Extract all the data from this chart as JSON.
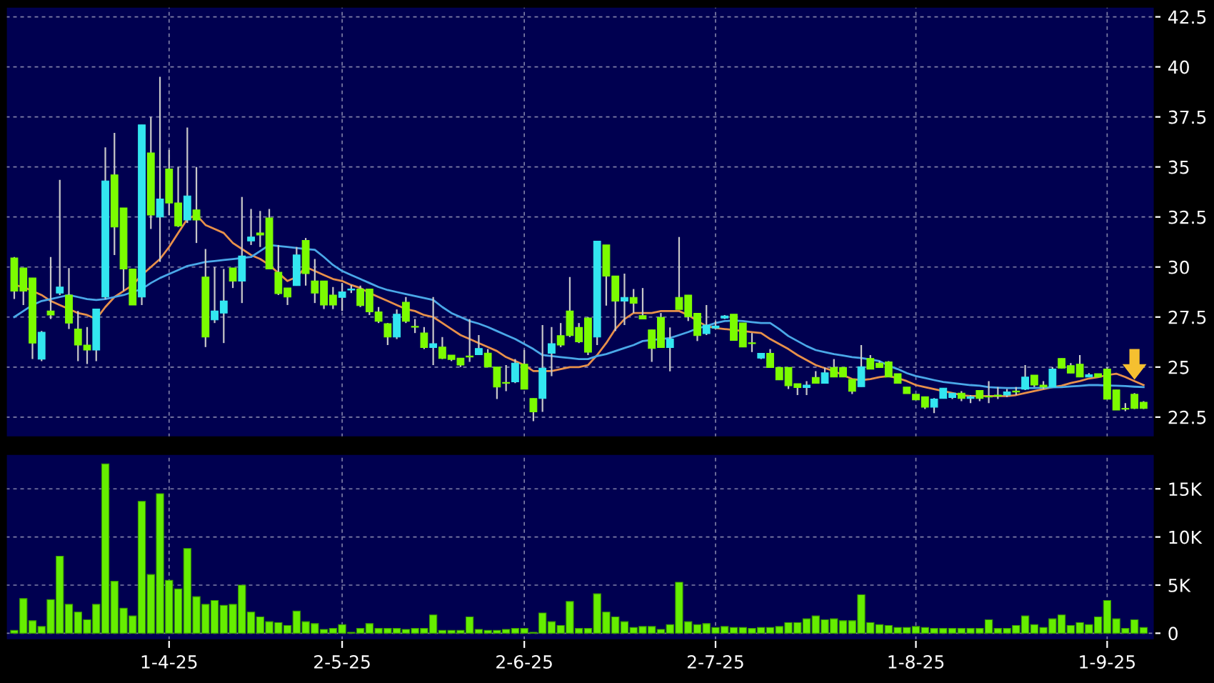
{
  "chart_data": [
    {
      "type": "candlestick",
      "categories": [
        null,
        null,
        null,
        null,
        null,
        null,
        null,
        null,
        null,
        null,
        null,
        null,
        null,
        null,
        null,
        null,
        null,
        null,
        null,
        null,
        null,
        null,
        null,
        null,
        null,
        null,
        null,
        null,
        null,
        null,
        null,
        null,
        null,
        null,
        null,
        null,
        null,
        null,
        null,
        null,
        null,
        null,
        null,
        null,
        null,
        null,
        null,
        null,
        null,
        null,
        null,
        null,
        null,
        null,
        null,
        null,
        null,
        null,
        null,
        null,
        null,
        null,
        null,
        null,
        null,
        null,
        null,
        null,
        null,
        null,
        null,
        null,
        null,
        null,
        null,
        null,
        null,
        null,
        null,
        null,
        null,
        null,
        null,
        null,
        null,
        null,
        null,
        null,
        null,
        null,
        null,
        null,
        null,
        null,
        null,
        null,
        null,
        null,
        null,
        null,
        null,
        null,
        null,
        null,
        null,
        null,
        null,
        null,
        null,
        null,
        null,
        null,
        null,
        null,
        null,
        null,
        null,
        null,
        null,
        null,
        null,
        null,
        null,
        null,
        null
      ],
      "ohlc": [
        [
          30.45,
          30.5,
          28.4,
          28.8
        ],
        [
          29.95,
          29.95,
          28.1,
          28.8
        ],
        [
          29.45,
          29.45,
          25.4,
          26.2
        ],
        [
          25.4,
          26.8,
          25.3,
          26.74
        ],
        [
          27.8,
          30.5,
          27.4,
          27.6
        ],
        [
          28.7,
          34.35,
          28.6,
          29.0
        ],
        [
          28.6,
          29.95,
          26.9,
          27.2
        ],
        [
          26.9,
          27.8,
          25.3,
          26.1
        ],
        [
          26.1,
          27.0,
          25.15,
          25.85
        ],
        [
          25.85,
          27.9,
          25.3,
          27.9
        ],
        [
          28.5,
          35.98,
          28.4,
          34.3
        ],
        [
          34.6,
          36.7,
          30.6,
          32.0
        ],
        [
          32.95,
          32.95,
          28.8,
          29.9
        ],
        [
          29.9,
          29.9,
          28.1,
          28.1
        ],
        [
          28.5,
          37.1,
          28.1,
          37.1
        ],
        [
          35.7,
          37.5,
          31.9,
          32.6
        ],
        [
          32.5,
          39.5,
          30.26,
          33.4
        ],
        [
          34.9,
          35.85,
          32.6,
          33.2
        ],
        [
          33.2,
          35.0,
          32.0,
          32.05
        ],
        [
          32.35,
          36.97,
          32.2,
          33.55
        ],
        [
          32.85,
          35.0,
          31.2,
          32.35
        ],
        [
          29.5,
          30.9,
          26.0,
          26.5
        ],
        [
          27.36,
          30.0,
          27.2,
          27.8
        ],
        [
          27.7,
          29.9,
          26.2,
          28.3
        ],
        [
          29.95,
          29.95,
          28.95,
          29.3
        ],
        [
          29.3,
          33.5,
          28.2,
          30.55
        ],
        [
          31.3,
          32.9,
          31.1,
          31.5
        ],
        [
          31.7,
          32.8,
          31.0,
          31.6
        ],
        [
          32.45,
          32.9,
          29.9,
          29.9
        ],
        [
          29.74,
          31.1,
          28.6,
          28.67
        ],
        [
          28.95,
          28.95,
          28.1,
          28.5
        ],
        [
          29.07,
          31.0,
          29.07,
          30.6
        ],
        [
          31.33,
          31.45,
          29.07,
          29.67
        ],
        [
          29.3,
          30.4,
          28.2,
          28.7
        ],
        [
          29.3,
          29.3,
          27.9,
          28.1
        ],
        [
          28.6,
          29.0,
          27.9,
          28.1
        ],
        [
          28.48,
          29.2,
          27.8,
          28.76
        ],
        [
          28.85,
          29.1,
          28.7,
          28.9
        ],
        [
          28.9,
          29.07,
          28.0,
          28.07
        ],
        [
          28.9,
          28.9,
          27.6,
          27.76
        ],
        [
          27.76,
          28.0,
          27.2,
          27.29
        ],
        [
          27.17,
          27.2,
          26.1,
          26.5
        ],
        [
          26.5,
          27.88,
          26.4,
          27.64
        ],
        [
          28.24,
          28.5,
          27.2,
          27.29
        ],
        [
          27.0,
          27.4,
          26.7,
          26.99
        ],
        [
          26.7,
          27.0,
          25.9,
          25.98
        ],
        [
          25.98,
          28.5,
          25.1,
          26.17
        ],
        [
          26.0,
          26.5,
          25.4,
          25.43
        ],
        [
          25.6,
          25.6,
          25.3,
          25.38
        ],
        [
          25.45,
          25.45,
          25.0,
          25.1
        ],
        [
          25.55,
          27.4,
          25.26,
          25.5
        ],
        [
          25.62,
          26.6,
          25.6,
          25.93
        ],
        [
          25.7,
          25.9,
          25.0,
          25.0
        ],
        [
          25.0,
          25.0,
          23.4,
          24.0
        ],
        [
          24.2,
          25.1,
          23.8,
          24.19
        ],
        [
          24.26,
          25.4,
          24.2,
          25.2
        ],
        [
          25.14,
          25.86,
          23.9,
          23.9
        ],
        [
          23.43,
          23.43,
          22.3,
          22.76
        ],
        [
          23.43,
          27.1,
          22.76,
          24.95
        ],
        [
          25.69,
          27.0,
          24.55,
          26.17
        ],
        [
          26.57,
          27.2,
          26.0,
          26.1
        ],
        [
          27.8,
          29.5,
          26.5,
          26.57
        ],
        [
          26.98,
          27.2,
          26.2,
          26.26
        ],
        [
          27.45,
          27.5,
          25.6,
          25.74
        ],
        [
          26.5,
          31.3,
          26.1,
          31.29
        ],
        [
          31.1,
          31.1,
          28.07,
          29.55
        ],
        [
          29.55,
          29.55,
          26.8,
          28.3
        ],
        [
          28.3,
          29.67,
          27.1,
          28.48
        ],
        [
          28.48,
          28.9,
          27.7,
          28.19
        ],
        [
          27.57,
          28.95,
          27.4,
          27.4
        ],
        [
          26.86,
          26.86,
          25.26,
          25.93
        ],
        [
          27.48,
          27.7,
          25.98,
          25.98
        ],
        [
          25.98,
          26.98,
          24.79,
          26.4
        ],
        [
          28.48,
          31.5,
          27.88,
          27.88
        ],
        [
          28.6,
          28.6,
          27.3,
          27.52
        ],
        [
          27.69,
          27.7,
          26.3,
          26.57
        ],
        [
          26.67,
          28.1,
          26.6,
          27.1
        ],
        [
          26.95,
          27.3,
          26.9,
          27.05
        ],
        [
          27.45,
          27.6,
          27.4,
          27.55
        ],
        [
          27.64,
          27.64,
          26.33,
          26.33
        ],
        [
          27.2,
          27.2,
          26.0,
          26.0
        ],
        [
          26.2,
          26.7,
          25.75,
          26.17
        ],
        [
          25.45,
          25.69,
          25.4,
          25.69
        ],
        [
          25.69,
          25.9,
          24.98,
          24.98
        ],
        [
          24.98,
          24.98,
          24.36,
          24.36
        ],
        [
          24.98,
          24.98,
          23.9,
          24.07
        ],
        [
          24.17,
          24.17,
          23.6,
          23.98
        ],
        [
          23.98,
          24.3,
          23.6,
          24.1
        ],
        [
          24.48,
          24.8,
          24.19,
          24.19
        ],
        [
          24.19,
          24.98,
          24.19,
          24.71
        ],
        [
          24.98,
          25.4,
          24.5,
          24.5
        ],
        [
          24.98,
          24.98,
          24.5,
          24.5
        ],
        [
          24.38,
          24.38,
          23.65,
          23.79
        ],
        [
          24.02,
          26.1,
          24.02,
          25.02
        ],
        [
          25.43,
          25.6,
          24.9,
          24.9
        ],
        [
          25.2,
          25.3,
          24.98,
          24.98
        ],
        [
          25.26,
          25.3,
          24.5,
          24.5
        ],
        [
          24.67,
          24.67,
          24.19,
          24.19
        ],
        [
          24.0,
          24.0,
          23.67,
          23.67
        ],
        [
          23.64,
          23.64,
          23.36,
          23.36
        ],
        [
          23.52,
          23.52,
          22.9,
          23.0
        ],
        [
          23.0,
          23.45,
          22.7,
          23.4
        ],
        [
          23.43,
          23.95,
          23.43,
          23.95
        ],
        [
          23.48,
          23.7,
          23.4,
          23.7
        ],
        [
          23.7,
          23.8,
          23.3,
          23.43
        ],
        [
          23.43,
          23.6,
          23.2,
          23.52
        ],
        [
          23.83,
          23.83,
          23.3,
          23.43
        ],
        [
          23.52,
          24.3,
          23.2,
          23.5
        ],
        [
          23.6,
          24.0,
          23.4,
          23.55
        ],
        [
          23.6,
          23.9,
          23.5,
          23.76
        ],
        [
          23.8,
          24.0,
          23.6,
          23.75
        ],
        [
          23.9,
          25.1,
          23.85,
          24.5
        ],
        [
          24.6,
          24.6,
          24.0,
          24.1
        ],
        [
          24.1,
          24.3,
          23.9,
          24.0
        ],
        [
          24.0,
          25.0,
          24.0,
          24.9
        ],
        [
          25.43,
          25.43,
          24.93,
          24.95
        ],
        [
          25.07,
          25.2,
          24.7,
          24.7
        ],
        [
          25.14,
          25.6,
          24.5,
          24.5
        ],
        [
          24.5,
          24.7,
          24.5,
          24.62
        ],
        [
          24.67,
          24.67,
          24.5,
          24.5
        ],
        [
          24.9,
          25.0,
          23.4,
          23.4
        ],
        [
          23.86,
          23.86,
          22.85,
          22.85
        ],
        [
          22.93,
          23.2,
          22.8,
          22.9
        ],
        [
          23.64,
          23.7,
          22.9,
          22.93
        ],
        [
          23.24,
          23.3,
          22.9,
          22.93
        ]
      ],
      "colors": [
        "#7cfc00",
        "#7cfc00",
        "#7cfc00",
        "#33e6f0",
        "#7cfc00",
        "#33e6f0",
        "#7cfc00",
        "#7cfc00",
        "#7cfc00",
        "#33e6f0",
        "#33e6f0",
        "#7cfc00",
        "#7cfc00",
        "#7cfc00",
        "#33e6f0",
        "#7cfc00",
        "#33e6f0",
        "#7cfc00",
        "#7cfc00",
        "#33e6f0",
        "#7cfc00",
        "#7cfc00",
        "#33e6f0",
        "#33e6f0",
        "#7cfc00",
        "#33e6f0",
        "#33e6f0",
        "#7cfc00",
        "#7cfc00",
        "#7cfc00",
        "#7cfc00",
        "#33e6f0",
        "#7cfc00",
        "#7cfc00",
        "#7cfc00",
        "#7cfc00",
        "#33e6f0",
        "#33e6f0",
        "#7cfc00",
        "#7cfc00",
        "#7cfc00",
        "#7cfc00",
        "#33e6f0",
        "#7cfc00",
        "#7cfc00",
        "#7cfc00",
        "#33e6f0",
        "#7cfc00",
        "#7cfc00",
        "#7cfc00",
        "#7cfc00",
        "#33e6f0",
        "#7cfc00",
        "#7cfc00",
        "#7cfc00",
        "#33e6f0",
        "#7cfc00",
        "#7cfc00",
        "#33e6f0",
        "#33e6f0",
        "#7cfc00",
        "#7cfc00",
        "#7cfc00",
        "#7cfc00",
        "#33e6f0",
        "#7cfc00",
        "#7cfc00",
        "#33e6f0",
        "#7cfc00",
        "#7cfc00",
        "#7cfc00",
        "#7cfc00",
        "#33e6f0",
        "#7cfc00",
        "#7cfc00",
        "#7cfc00",
        "#33e6f0",
        "#33e6f0",
        "#33e6f0",
        "#7cfc00",
        "#7cfc00",
        "#7cfc00",
        "#33e6f0",
        "#7cfc00",
        "#7cfc00",
        "#7cfc00",
        "#7cfc00",
        "#33e6f0",
        "#7cfc00",
        "#33e6f0",
        "#7cfc00",
        "#7cfc00",
        "#7cfc00",
        "#33e6f0",
        "#7cfc00",
        "#7cfc00",
        "#7cfc00",
        "#7cfc00",
        "#7cfc00",
        "#7cfc00",
        "#7cfc00",
        "#33e6f0",
        "#33e6f0",
        "#33e6f0",
        "#7cfc00",
        "#33e6f0",
        "#7cfc00",
        "#7cfc00",
        "#7cfc00",
        "#33e6f0",
        "#7cfc00",
        "#33e6f0",
        "#7cfc00",
        "#7cfc00",
        "#33e6f0",
        "#7cfc00",
        "#7cfc00",
        "#7cfc00",
        "#33e6f0",
        "#7cfc00",
        "#7cfc00",
        "#7cfc00",
        "#7cfc00",
        "#7cfc00",
        "#7cfc00"
      ],
      "series": [
        {
          "type": "line",
          "color": "#e8904a",
          "values": [
            29.1,
            29.0,
            28.8,
            28.6,
            28.3,
            28.1,
            27.9,
            27.7,
            27.6,
            27.4,
            28.0,
            28.5,
            28.8,
            29.1,
            29.6,
            30.0,
            30.4,
            31.0,
            31.7,
            32.4,
            32.6,
            32.1,
            31.9,
            31.7,
            31.2,
            30.9,
            30.6,
            30.4,
            30.1,
            29.7,
            29.3,
            29.5,
            30.0,
            29.8,
            29.6,
            29.4,
            29.3,
            29.1,
            28.95,
            28.7,
            28.5,
            28.3,
            28.1,
            27.9,
            27.8,
            27.6,
            27.5,
            27.2,
            26.9,
            26.6,
            26.4,
            26.2,
            26.0,
            25.8,
            25.5,
            25.3,
            25.1,
            24.8,
            24.8,
            24.8,
            24.9,
            25.0,
            25.0,
            25.1,
            25.6,
            26.2,
            26.9,
            27.4,
            27.7,
            27.7,
            27.7,
            27.8,
            27.8,
            27.8,
            27.6,
            27.3,
            27.05,
            26.95,
            26.9,
            26.85,
            26.8,
            26.75,
            26.7,
            26.4,
            26.15,
            25.9,
            25.6,
            25.35,
            25.1,
            24.95,
            24.8,
            24.6,
            24.4,
            24.35,
            24.4,
            24.5,
            24.55,
            24.45,
            24.3,
            24.1,
            24.0,
            23.9,
            23.8,
            23.7,
            23.6,
            23.55,
            23.55,
            23.55,
            23.55,
            23.55,
            23.6,
            23.7,
            23.8,
            23.9,
            24.0,
            24.07,
            24.2,
            24.3,
            24.43,
            24.5,
            24.6,
            24.67,
            24.5,
            24.3,
            24.1
          ]
        },
        {
          "type": "line",
          "color": "#4aa8e8",
          "values": [
            27.5,
            27.8,
            28.1,
            28.3,
            28.4,
            28.5,
            28.6,
            28.5,
            28.4,
            28.35,
            28.4,
            28.5,
            28.6,
            28.75,
            28.9,
            29.2,
            29.45,
            29.65,
            29.85,
            30.05,
            30.15,
            30.25,
            30.3,
            30.35,
            30.4,
            30.45,
            30.5,
            30.8,
            31.1,
            31.05,
            31.0,
            30.95,
            30.9,
            30.86,
            30.5,
            30.1,
            29.8,
            29.6,
            29.4,
            29.2,
            29.0,
            28.85,
            28.75,
            28.65,
            28.55,
            28.45,
            28.35,
            28.0,
            27.7,
            27.5,
            27.3,
            27.17,
            27.0,
            26.8,
            26.6,
            26.4,
            26.15,
            25.9,
            25.6,
            25.55,
            25.5,
            25.45,
            25.4,
            25.4,
            25.55,
            25.65,
            25.8,
            25.95,
            26.1,
            26.3,
            26.35,
            26.4,
            26.45,
            26.6,
            26.75,
            26.93,
            27.05,
            27.2,
            27.3,
            27.33,
            27.3,
            27.25,
            27.2,
            27.2,
            26.9,
            26.55,
            26.3,
            26.05,
            25.85,
            25.75,
            25.65,
            25.58,
            25.5,
            25.45,
            25.38,
            25.3,
            25.07,
            24.9,
            24.7,
            24.55,
            24.45,
            24.35,
            24.26,
            24.2,
            24.15,
            24.1,
            24.07,
            24.0,
            23.97,
            23.95,
            23.95,
            23.95,
            23.95,
            23.97,
            23.99,
            24.0,
            24.03,
            24.06,
            24.1,
            24.1,
            24.08,
            24.07,
            24.05,
            24.02,
            24.0
          ]
        }
      ],
      "ylim": [
        21.5,
        43.0
      ],
      "yticks": [
        22.5,
        25,
        27.5,
        30,
        32.5,
        35,
        37.5,
        40,
        42.5
      ],
      "grid": true,
      "tick_labels": "y"
    },
    {
      "type": "bar",
      "categories": [
        null,
        null,
        null,
        null,
        null,
        null,
        null,
        null,
        null,
        null,
        null,
        null,
        null,
        null,
        null,
        null,
        null,
        "1-4-25",
        null,
        null,
        null,
        null,
        null,
        null,
        null,
        null,
        null,
        null,
        null,
        null,
        null,
        null,
        null,
        null,
        null,
        null,
        "2-5-25",
        null,
        null,
        null,
        null,
        null,
        null,
        null,
        null,
        null,
        null,
        null,
        null,
        null,
        null,
        null,
        null,
        null,
        null,
        null,
        "2-6-25",
        null,
        null,
        null,
        null,
        null,
        null,
        null,
        null,
        null,
        null,
        null,
        null,
        null,
        null,
        null,
        null,
        null,
        null,
        null,
        null,
        "2-7-25",
        null,
        null,
        null,
        null,
        null,
        null,
        null,
        null,
        null,
        null,
        null,
        null,
        null,
        null,
        null,
        null,
        null,
        null,
        null,
        null,
        null,
        "1-8-25",
        null,
        null,
        null,
        null,
        null,
        null,
        null,
        null,
        null,
        null,
        null,
        null,
        null,
        null,
        null,
        null,
        null,
        null,
        null,
        null,
        "1-9-25",
        null,
        null,
        null,
        null
      ],
      "values": [
        300,
        3600,
        1300,
        700,
        3500,
        8000,
        3000,
        2200,
        1400,
        3000,
        17600,
        5400,
        2600,
        1800,
        13700,
        6100,
        14500,
        5500,
        4600,
        8800,
        3800,
        3000,
        3400,
        2900,
        3000,
        5000,
        2200,
        1700,
        1200,
        1100,
        800,
        2300,
        1200,
        1000,
        400,
        500,
        900,
        100,
        500,
        1000,
        500,
        500,
        500,
        400,
        500,
        500,
        1900,
        300,
        300,
        300,
        1700,
        400,
        300,
        300,
        400,
        500,
        500,
        100,
        2100,
        1200,
        800,
        3300,
        500,
        500,
        4100,
        2200,
        1700,
        1200,
        600,
        700,
        700,
        400,
        900,
        5300,
        1200,
        900,
        1000,
        600,
        700,
        600,
        600,
        500,
        600,
        600,
        700,
        1100,
        1100,
        1500,
        1800,
        1400,
        1500,
        1300,
        1300,
        4000,
        1100,
        900,
        800,
        600,
        600,
        700,
        600,
        500,
        500,
        500,
        500,
        500,
        500,
        1400,
        500,
        500,
        800,
        1800,
        900,
        600,
        1500,
        1900,
        800,
        1100,
        900,
        1700,
        3400,
        1500,
        500,
        1400,
        600
      ],
      "color": "#66ee00",
      "ylim": [
        -700,
        18600
      ],
      "yticks": [
        0,
        {
          "value": 5000,
          "label": "5K"
        },
        {
          "value": 10000,
          "label": "10K"
        },
        {
          "value": 15000,
          "label": "15K"
        }
      ],
      "grid": true
    }
  ]
}
